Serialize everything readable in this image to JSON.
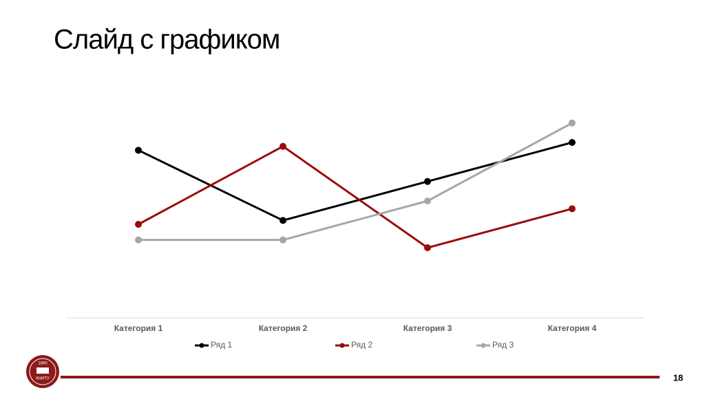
{
  "header": {
    "title": "Слайд с графиком"
  },
  "chart_data": {
    "type": "line",
    "categories": [
      "Категория 1",
      "Категория 2",
      "Категория 3",
      "Категория 4"
    ],
    "series": [
      {
        "name": "Ряд 1",
        "color": "#000000",
        "values": [
          4.3,
          2.5,
          3.5,
          4.5
        ]
      },
      {
        "name": "Ряд 2",
        "color": "#9b0a0a",
        "values": [
          2.4,
          4.4,
          1.8,
          2.8
        ]
      },
      {
        "name": "Ряд 3",
        "color": "#a6a6a6",
        "values": [
          2,
          2,
          3,
          5
        ]
      }
    ],
    "ylim": [
      0,
      6
    ],
    "legend": "bottom"
  },
  "footer": {
    "page": "18",
    "logo_year": "1890",
    "logo_name": "КНИТУ"
  }
}
